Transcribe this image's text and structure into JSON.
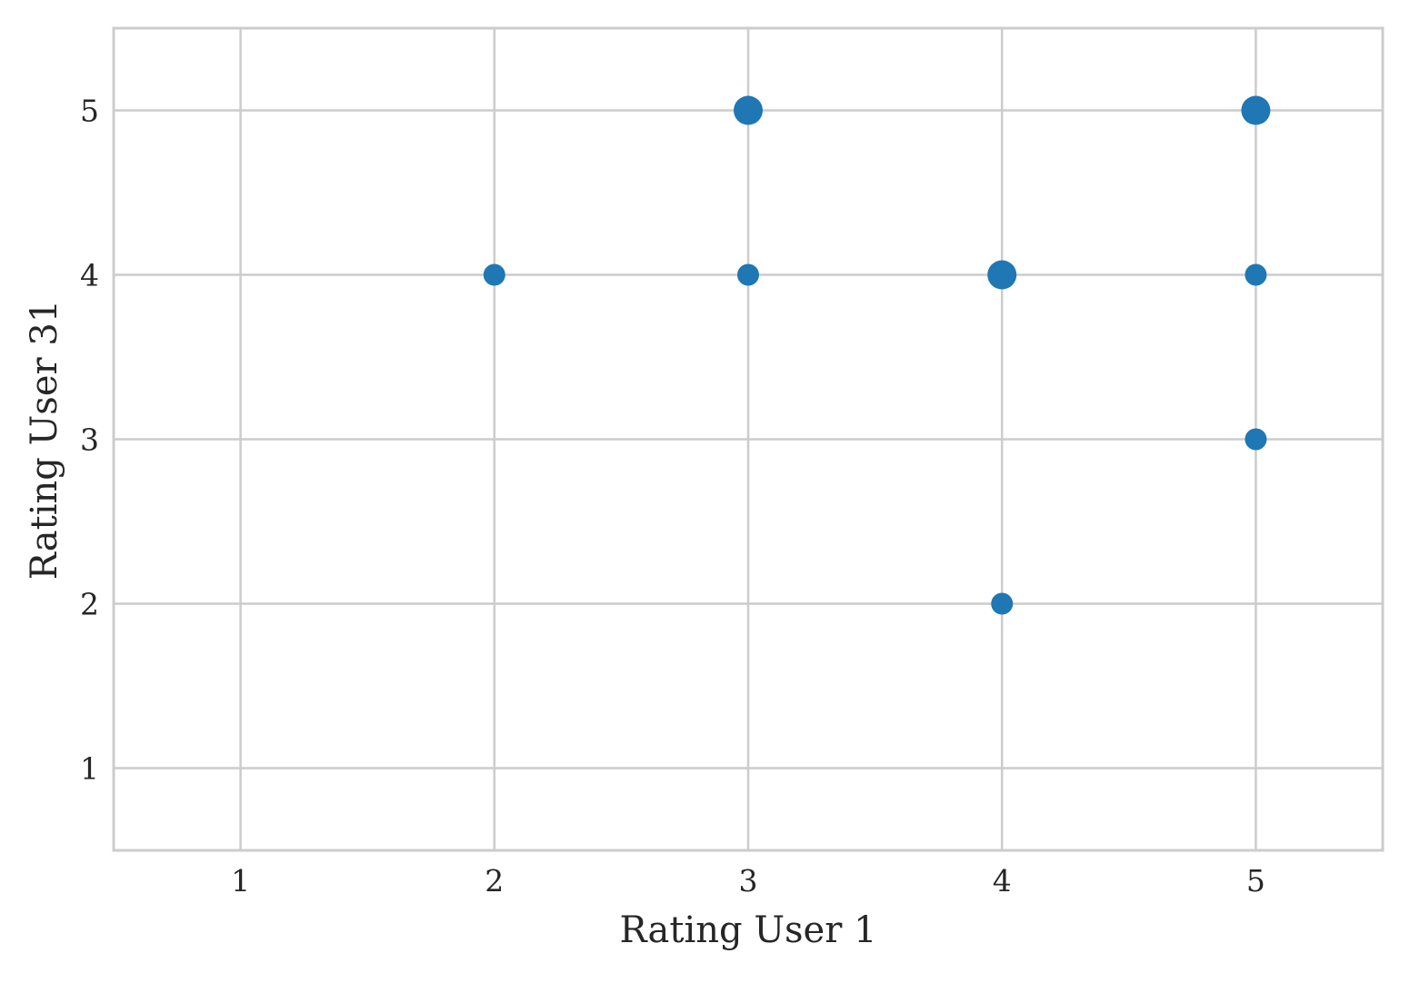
{
  "chart_data": {
    "type": "scatter",
    "title": "",
    "xlabel": "Rating User 1",
    "ylabel": "Rating User 31",
    "xlim": [
      0.5,
      5.5
    ],
    "ylim": [
      0.5,
      5.5
    ],
    "xticks": [
      1,
      2,
      3,
      4,
      5
    ],
    "yticks": [
      1,
      2,
      3,
      4,
      5
    ],
    "grid": true,
    "legend": "none",
    "point_color": "#1f77b4",
    "grid_color": "#cccccc",
    "frame_color": "#cccccc",
    "points": [
      {
        "x": 2,
        "y": 4,
        "count": 1
      },
      {
        "x": 3,
        "y": 4,
        "count": 1
      },
      {
        "x": 3,
        "y": 5,
        "count": 2
      },
      {
        "x": 4,
        "y": 2,
        "count": 1
      },
      {
        "x": 4,
        "y": 4,
        "count": 2
      },
      {
        "x": 5,
        "y": 3,
        "count": 1
      },
      {
        "x": 5,
        "y": 4,
        "count": 1
      },
      {
        "x": 5,
        "y": 5,
        "count": 2
      }
    ]
  }
}
